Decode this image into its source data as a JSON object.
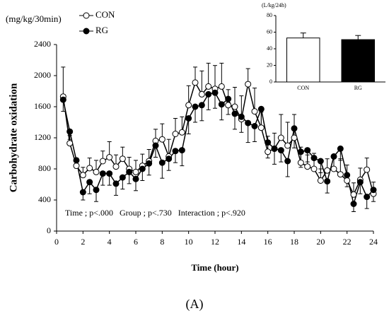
{
  "chart_data": [
    {
      "type": "line",
      "y_unit": "(mg/kg/30min)",
      "ylabel": "Carbohydrate oxidation",
      "xlabel": "Time (hour)",
      "annotation": "Time ; p<.000   Group ; p<.730   Interaction ; p<.920",
      "panel_label": "(A)",
      "xlim": [
        0,
        24
      ],
      "xticks": [
        0,
        2,
        4,
        6,
        8,
        10,
        12,
        14,
        16,
        18,
        20,
        22,
        24
      ],
      "ylim": [
        0,
        2400
      ],
      "yticks": [
        0,
        400,
        800,
        1200,
        1600,
        2000,
        2400
      ],
      "x": [
        0.5,
        1,
        1.5,
        2,
        2.5,
        3,
        3.5,
        4,
        4.5,
        5,
        5.5,
        6,
        6.5,
        7,
        7.5,
        8,
        8.5,
        9,
        9.5,
        10,
        10.5,
        11,
        11.5,
        12,
        12.5,
        13,
        13.5,
        14,
        14.5,
        15,
        15.5,
        16,
        16.5,
        17,
        17.5,
        18,
        18.5,
        19,
        19.5,
        20,
        20.5,
        21,
        21.5,
        22,
        22.5,
        23,
        23.5,
        24
      ],
      "series": [
        {
          "name": "CON",
          "color": "#ffffff",
          "values": [
            1730,
            1130,
            840,
            720,
            810,
            760,
            900,
            950,
            830,
            930,
            800,
            760,
            840,
            900,
            1160,
            1180,
            960,
            1250,
            1270,
            1620,
            1910,
            1760,
            1860,
            1830,
            1860,
            1620,
            1600,
            1440,
            1890,
            1540,
            1330,
            1020,
            1060,
            1200,
            1100,
            1200,
            880,
            830,
            800,
            650,
            780,
            800,
            730,
            650,
            470,
            660,
            790,
            480
          ],
          "errors": [
            380,
            100,
            100,
            100,
            130,
            150,
            130,
            200,
            150,
            150,
            150,
            150,
            150,
            150,
            150,
            200,
            220,
            200,
            200,
            250,
            200,
            300,
            300,
            300,
            300,
            200,
            250,
            300,
            200,
            300,
            200,
            200,
            200,
            300,
            300,
            300,
            200,
            150,
            200,
            150,
            150,
            150,
            200,
            200,
            150,
            150,
            150,
            150
          ]
        },
        {
          "name": "RG",
          "color": "#000000",
          "values": [
            1690,
            1280,
            910,
            500,
            630,
            530,
            740,
            740,
            610,
            690,
            760,
            670,
            800,
            870,
            1100,
            880,
            930,
            1030,
            1040,
            1450,
            1600,
            1620,
            1760,
            1780,
            1630,
            1700,
            1510,
            1470,
            1390,
            1350,
            1570,
            1140,
            1060,
            1040,
            900,
            1320,
            1020,
            1040,
            940,
            900,
            640,
            960,
            1060,
            720,
            350,
            630,
            440,
            530
          ],
          "errors": [
            150,
            100,
            100,
            100,
            150,
            150,
            150,
            150,
            150,
            150,
            150,
            150,
            150,
            150,
            150,
            200,
            150,
            150,
            200,
            200,
            200,
            200,
            200,
            200,
            200,
            200,
            200,
            200,
            250,
            200,
            250,
            200,
            200,
            150,
            200,
            250,
            200,
            150,
            150,
            150,
            150,
            150,
            150,
            150,
            100,
            150,
            150,
            150
          ]
        }
      ]
    },
    {
      "type": "bar",
      "y_unit": "(L/kg/24h)",
      "categories": [
        "CON",
        "RG"
      ],
      "values": [
        53,
        51
      ],
      "errors": [
        6,
        5
      ],
      "colors": [
        "#ffffff",
        "#000000"
      ],
      "ylim": [
        0,
        80
      ],
      "yticks": [
        0,
        20,
        40,
        60,
        80
      ]
    }
  ]
}
